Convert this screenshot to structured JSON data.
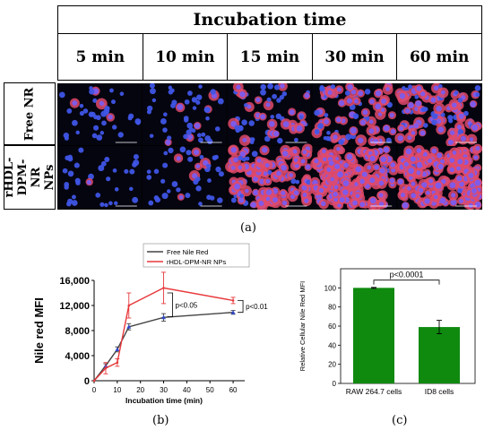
{
  "panel_a": {
    "header": "Incubation time",
    "times": [
      "5 min",
      "10 min",
      "15 min",
      "30 min",
      "60 min"
    ],
    "rows": [
      "Free NR",
      "rHDL-DPM-NR NPs"
    ],
    "label": "(a)"
  },
  "panel_b_label": "(b)",
  "panel_c_label": "(c)",
  "chart_data": [
    {
      "type": "line",
      "xlabel": "Incubation time (min)",
      "ylabel": "Nile red MFI",
      "xlim": [
        0,
        65
      ],
      "ylim": [
        0,
        16000
      ],
      "xticks": [
        0,
        10,
        20,
        30,
        40,
        50,
        60
      ],
      "yticks": [
        0,
        4000,
        8000,
        12000,
        16000
      ],
      "ytick_labels": [
        "0",
        "4,000",
        "8,000",
        "12,000",
        "16,000"
      ],
      "legend_placement": "top-right",
      "series": [
        {
          "name": "Free Nile Red",
          "color": "#444444",
          "x": [
            0,
            5,
            10,
            15,
            30,
            60
          ],
          "y": [
            0,
            2400,
            5000,
            8600,
            10100,
            10900
          ],
          "err": [
            0,
            300,
            400,
            500,
            600,
            300
          ]
        },
        {
          "name": "rHDL-DPM-NR NPs",
          "color": "#e8383b",
          "x": [
            0,
            5,
            10,
            15,
            30,
            60
          ],
          "y": [
            0,
            2000,
            2900,
            12000,
            14800,
            12800
          ],
          "err": [
            0,
            900,
            600,
            2000,
            2500,
            500
          ]
        }
      ],
      "annotations": [
        {
          "text": "p<0.05",
          "at_x": 30
        },
        {
          "text": "p<0.01",
          "at_x": 60
        }
      ]
    },
    {
      "type": "bar",
      "categories": [
        "RAW 264.7 cells",
        "ID8 cells"
      ],
      "values": [
        100,
        59
      ],
      "err": [
        0.5,
        7
      ],
      "ylabel": "Relative Cellular Nile Red MFI",
      "ylim": [
        0,
        120
      ],
      "yticks": [
        0,
        20,
        40,
        60,
        80,
        100
      ],
      "bar_color": "#0f8a0f",
      "annotation": "p<0.0001"
    }
  ]
}
